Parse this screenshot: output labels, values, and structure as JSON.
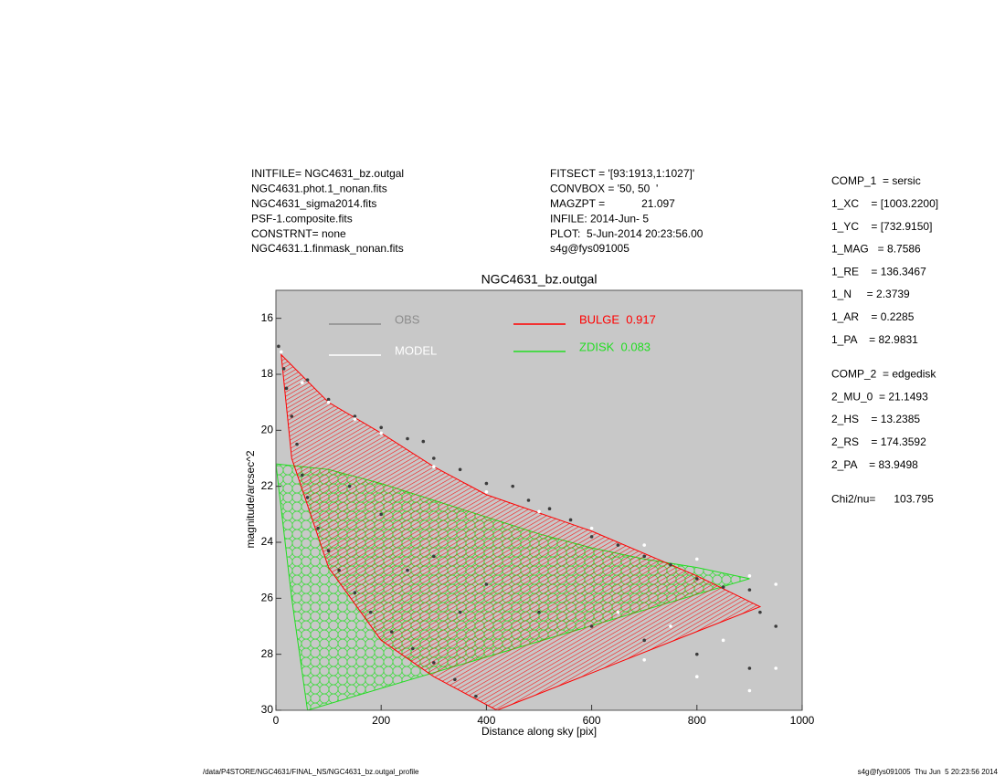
{
  "chart_data": {
    "type": "profile",
    "title": "NGC4631_bz.outgal",
    "xlabel": "Distance along sky [pix]",
    "ylabel": "magnitude/arcsec^2",
    "xlim": [
      0,
      1000
    ],
    "xticks": [
      0,
      200,
      400,
      600,
      800,
      1000
    ],
    "ylim": [
      30,
      15
    ],
    "yticks": [
      16,
      18,
      20,
      22,
      24,
      26,
      28,
      30
    ],
    "background": "#c8c8c8",
    "series": [
      {
        "name": "OBS",
        "kind": "points",
        "color": "#3c3c3c",
        "legend_color": "#8c8c8c",
        "x": [
          5,
          15,
          20,
          30,
          40,
          50,
          60,
          80,
          100,
          120,
          150,
          180,
          220,
          260,
          300,
          340,
          380,
          60,
          100,
          150,
          200,
          250,
          280,
          300,
          350,
          400,
          450,
          480,
          520,
          560,
          600,
          650,
          700,
          750,
          800,
          850,
          900,
          920,
          950,
          200,
          300,
          400,
          500,
          600,
          700,
          800,
          900,
          140,
          250,
          350
        ],
        "values": [
          17.0,
          17.8,
          18.5,
          19.5,
          20.5,
          21.6,
          22.4,
          23.5,
          24.3,
          25.0,
          25.8,
          26.5,
          27.2,
          27.8,
          28.3,
          28.9,
          29.5,
          18.2,
          18.9,
          19.5,
          19.9,
          20.3,
          20.4,
          21.0,
          21.4,
          21.9,
          22.0,
          22.5,
          22.8,
          23.2,
          23.8,
          24.1,
          24.5,
          24.8,
          25.3,
          25.6,
          25.7,
          26.5,
          27.0,
          23.0,
          24.5,
          25.5,
          26.5,
          27.0,
          27.5,
          28.0,
          28.5,
          22.0,
          25.0,
          26.5
        ]
      },
      {
        "name": "MODEL",
        "kind": "points",
        "color": "#ffffff",
        "legend_color": "#ffffff",
        "x": [
          10,
          50,
          100,
          150,
          200,
          300,
          400,
          500,
          600,
          700,
          800,
          900,
          950,
          650,
          750,
          850,
          950,
          700,
          800,
          900
        ],
        "values": [
          17.2,
          18.3,
          19.0,
          19.6,
          20.1,
          21.3,
          22.2,
          22.9,
          23.5,
          24.1,
          24.6,
          25.2,
          25.5,
          26.5,
          27.0,
          27.5,
          28.5,
          28.2,
          28.8,
          29.3
        ]
      },
      {
        "name": "BULGE  0.917",
        "kind": "band",
        "color": "#ff0000",
        "legend_color": "#ff0000",
        "x": [
          10,
          100,
          200,
          300,
          400,
          600,
          800,
          920
        ],
        "values": [
          17.3,
          19.0,
          20.1,
          21.3,
          22.3,
          23.6,
          25.2,
          26.3
        ],
        "lower_x": [
          30,
          100,
          200,
          300,
          420
        ],
        "lower_values": [
          21.0,
          24.9,
          27.5,
          28.8,
          30
        ]
      },
      {
        "name": "ZDISK  0.083",
        "kind": "band",
        "color": "#22dd22",
        "legend_color": "#22dd22",
        "x": [
          0,
          100,
          200,
          300,
          400,
          500,
          600,
          700,
          800,
          900
        ],
        "values": [
          21.2,
          21.4,
          21.9,
          22.5,
          23.1,
          23.7,
          24.2,
          24.6,
          24.9,
          25.3
        ],
        "lower_x": [
          0,
          30,
          60
        ],
        "lower_values": [
          21.2,
          26,
          30
        ]
      }
    ]
  },
  "header_left": [
    "INITFILE= NGC4631_bz.outgal",
    "NGC4631.phot.1_nonan.fits",
    "NGC4631_sigma2014.fits",
    "PSF-1.composite.fits",
    "CONSTRNT= none",
    "NGC4631.1.finmask_nonan.fits"
  ],
  "header_middle": [
    "FITSECT = '[93:1913,1:1027]'",
    "CONVBOX = '50, 50  '",
    "MAGZPT =            21.097",
    "INFILE: 2014-Jun- 5",
    "PLOT:  5-Jun-2014 20:23:56.00",
    "s4g@fys091005"
  ],
  "parameters": [
    [
      "COMP_1  = sersic",
      "1_XC    = [1003.2200]",
      "1_YC    = [732.9150]",
      "1_MAG   = 8.7586",
      "1_RE    = 136.3467",
      "1_N     = 2.3739",
      "1_AR    = 0.2285",
      "1_PA    = 82.9831"
    ],
    [
      "COMP_2  = edgedisk",
      "2_MU_0  = 21.1493",
      "2_HS    = 13.2385",
      "2_RS    = 174.3592",
      "2_PA    = 83.9498"
    ],
    [
      "Chi2/nu=      103.795"
    ]
  ],
  "footer_left": "/data/P4STORE/NGC4631/FINAL_NS/NGC4631_bz.outgal_profile",
  "footer_right": "s4g@fys091005  Thu Jun  5 20:23:56 2014"
}
